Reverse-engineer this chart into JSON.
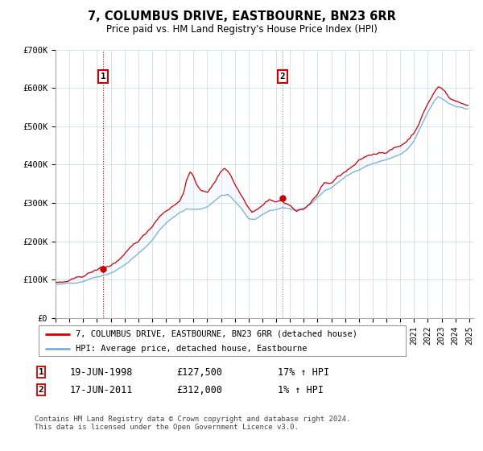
{
  "title": "7, COLUMBUS DRIVE, EASTBOURNE, BN23 6RR",
  "subtitle": "Price paid vs. HM Land Registry's House Price Index (HPI)",
  "legend_line1": "7, COLUMBUS DRIVE, EASTBOURNE, BN23 6RR (detached house)",
  "legend_line2": "HPI: Average price, detached house, Eastbourne",
  "annotation1_date": "19-JUN-1998",
  "annotation1_price": "£127,500",
  "annotation1_hpi": "17% ↑ HPI",
  "annotation1_year": 1998.46,
  "annotation1_value": 127500,
  "annotation2_date": "17-JUN-2011",
  "annotation2_price": "£312,000",
  "annotation2_hpi": "1% ↑ HPI",
  "annotation2_year": 2011.46,
  "annotation2_value": 312000,
  "footer": "Contains HM Land Registry data © Crown copyright and database right 2024.\nThis data is licensed under the Open Government Licence v3.0.",
  "hpi_color": "#7bafd4",
  "price_color": "#cc0000",
  "fill_color": "#ddeeff",
  "background_color": "#FFFFFF",
  "plot_bg_color": "#FFFFFF",
  "grid_color": "#c8d8e8",
  "ann1_vline_color": "#cc0000",
  "ann2_vline_color": "#888888",
  "ylim": [
    0,
    700000
  ],
  "xlim_start": 1995.0,
  "xlim_end": 2025.3,
  "yticks": [
    0,
    100000,
    200000,
    300000,
    400000,
    500000,
    600000,
    700000
  ],
  "ytick_labels": [
    "£0",
    "£100K",
    "£200K",
    "£300K",
    "£400K",
    "£500K",
    "£600K",
    "£700K"
  ],
  "xtick_years": [
    1995,
    1996,
    1997,
    1998,
    1999,
    2000,
    2001,
    2002,
    2003,
    2004,
    2005,
    2006,
    2007,
    2008,
    2009,
    2010,
    2011,
    2012,
    2013,
    2014,
    2015,
    2016,
    2017,
    2018,
    2019,
    2020,
    2021,
    2022,
    2023,
    2024,
    2025
  ]
}
